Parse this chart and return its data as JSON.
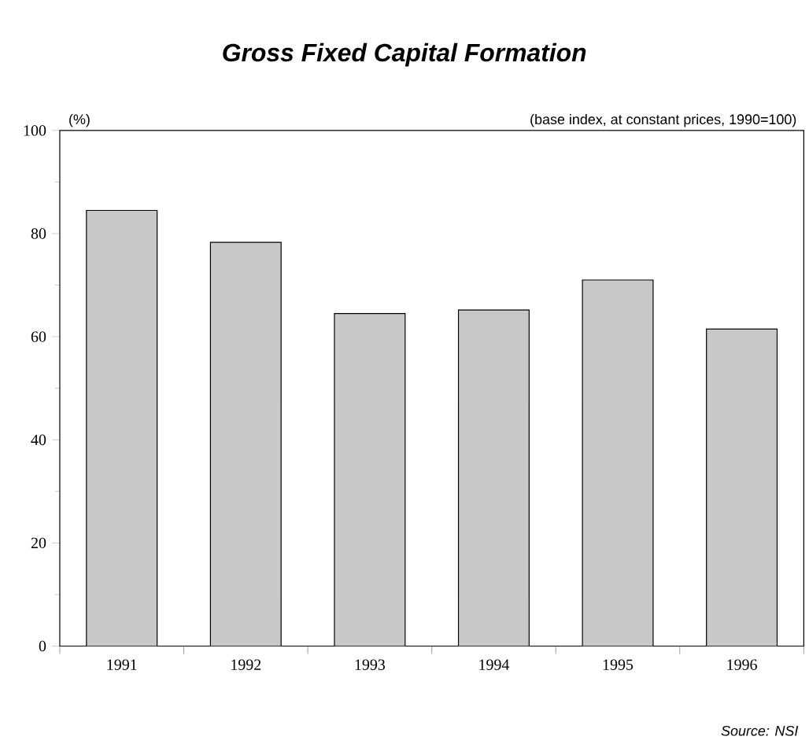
{
  "chart_data": {
    "type": "bar",
    "title": "Gross Fixed Capital Formation",
    "subtitle": "(base index, at constant prices, 1990=100)",
    "ylabel": "(%)",
    "annotations": [
      "Source: NSI"
    ],
    "categories": [
      "1991",
      "1992",
      "1993",
      "1994",
      "1995",
      "1996"
    ],
    "values": [
      84.5,
      78.3,
      64.5,
      65.2,
      71.0,
      61.5
    ],
    "color": "#c8c8c8",
    "ylim": [
      0,
      100
    ],
    "yticks": [
      0,
      20,
      40,
      60,
      80,
      100
    ],
    "grid": false
  }
}
